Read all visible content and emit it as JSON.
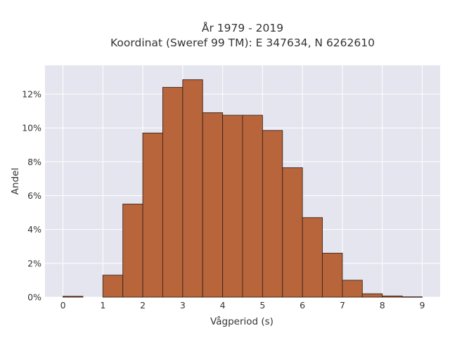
{
  "chart_data": {
    "type": "bar",
    "title": "År 1979 - 2019",
    "subtitle": "Koordinat (Sweref 99 TM): E 347634, N 6262610",
    "xlabel": "Vågperiod (s)",
    "ylabel": "Andel",
    "bin_width": 0.5,
    "bins": [
      {
        "start": 0.0,
        "value": 0.05
      },
      {
        "start": 0.5,
        "value": 0.0
      },
      {
        "start": 1.0,
        "value": 1.3
      },
      {
        "start": 1.5,
        "value": 5.5
      },
      {
        "start": 2.0,
        "value": 9.7
      },
      {
        "start": 2.5,
        "value": 12.4
      },
      {
        "start": 3.0,
        "value": 12.85
      },
      {
        "start": 3.5,
        "value": 10.9
      },
      {
        "start": 4.0,
        "value": 10.75
      },
      {
        "start": 4.5,
        "value": 10.75
      },
      {
        "start": 5.0,
        "value": 9.85
      },
      {
        "start": 5.5,
        "value": 7.65
      },
      {
        "start": 6.0,
        "value": 4.7
      },
      {
        "start": 6.5,
        "value": 2.6
      },
      {
        "start": 7.0,
        "value": 1.0
      },
      {
        "start": 7.5,
        "value": 0.2
      },
      {
        "start": 8.0,
        "value": 0.07
      },
      {
        "start": 8.5,
        "value": 0.02
      }
    ],
    "xlim": [
      -0.45,
      9.45
    ],
    "ylim": [
      0,
      13.7
    ],
    "xticks": [
      0,
      1,
      2,
      3,
      4,
      5,
      6,
      7,
      8,
      9
    ],
    "xtick_labels": [
      "0",
      "1",
      "2",
      "3",
      "4",
      "5",
      "6",
      "7",
      "8",
      "9"
    ],
    "yticks": [
      0,
      2,
      4,
      6,
      8,
      10,
      12
    ],
    "ytick_labels": [
      "0%",
      "2%",
      "4%",
      "6%",
      "8%",
      "10%",
      "12%"
    ],
    "grid": true,
    "colors": {
      "bar_fill": "#b8653c",
      "bar_edge": "#3b2418",
      "plot_background": "#e5e5ef",
      "grid": "#ffffff"
    }
  }
}
